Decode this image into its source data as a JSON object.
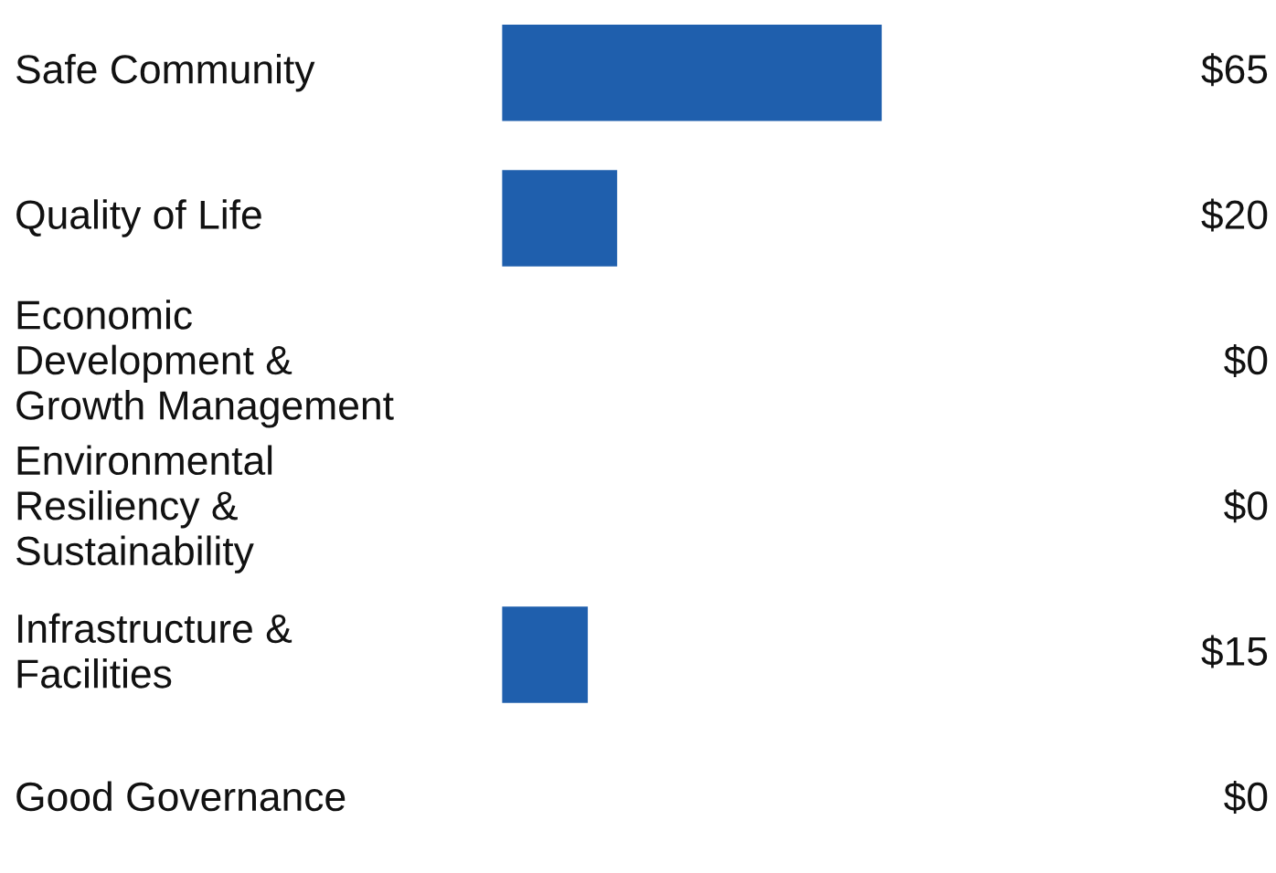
{
  "chart_data": {
    "type": "bar",
    "orientation": "horizontal",
    "categories": [
      "Safe Community",
      "Quality of Life",
      "Economic\nDevelopment &\nGrowth Management",
      "Environmental\nResiliency &\nSustainability",
      "Infrastructure &\nFacilities",
      "Good Governance"
    ],
    "values": [
      65,
      20,
      0,
      0,
      15,
      0
    ],
    "value_labels": [
      "$65",
      "$20",
      "$0",
      "$0",
      "$15",
      "$0"
    ],
    "color": "#1f5fad"
  }
}
